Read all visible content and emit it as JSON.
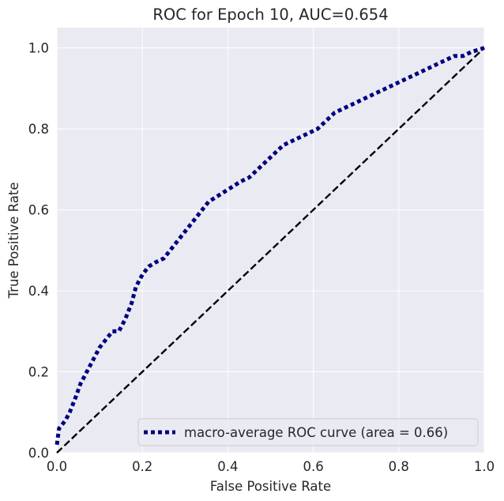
{
  "chart_data": {
    "type": "line",
    "title": "ROC for Epoch 10,  AUC=0.654",
    "xlabel": "False Positive Rate",
    "ylabel": "True Positive Rate",
    "xlim": [
      0.0,
      1.0
    ],
    "ylim": [
      0.0,
      1.05
    ],
    "xticks": [
      "0.0",
      "0.2",
      "0.4",
      "0.6",
      "0.8",
      "1.0"
    ],
    "yticks": [
      "0.0",
      "0.2",
      "0.4",
      "0.6",
      "0.8",
      "1.0"
    ],
    "grid": true,
    "legend_position": "lower-right",
    "background_color": "#eaeaf2",
    "series": [
      {
        "name": "macro-average ROC curve (area = 0.66)",
        "color": "#000080",
        "style": "dotted",
        "x": [
          0.0,
          0.005,
          0.02,
          0.03,
          0.045,
          0.055,
          0.07,
          0.085,
          0.1,
          0.115,
          0.13,
          0.145,
          0.16,
          0.175,
          0.185,
          0.2,
          0.215,
          0.23,
          0.25,
          0.265,
          0.28,
          0.295,
          0.31,
          0.325,
          0.34,
          0.355,
          0.37,
          0.385,
          0.4,
          0.415,
          0.43,
          0.45,
          0.47,
          0.49,
          0.51,
          0.53,
          0.55,
          0.57,
          0.59,
          0.61,
          0.63,
          0.65,
          0.67,
          0.69,
          0.71,
          0.73,
          0.75,
          0.77,
          0.79,
          0.81,
          0.83,
          0.85,
          0.87,
          0.89,
          0.91,
          0.93,
          0.95,
          0.97,
          1.0
        ],
        "y": [
          0.02,
          0.06,
          0.08,
          0.1,
          0.14,
          0.17,
          0.2,
          0.23,
          0.26,
          0.28,
          0.3,
          0.3,
          0.33,
          0.37,
          0.41,
          0.44,
          0.46,
          0.47,
          0.48,
          0.5,
          0.52,
          0.54,
          0.56,
          0.58,
          0.6,
          0.62,
          0.63,
          0.64,
          0.65,
          0.66,
          0.67,
          0.68,
          0.7,
          0.72,
          0.74,
          0.76,
          0.77,
          0.78,
          0.79,
          0.8,
          0.82,
          0.84,
          0.85,
          0.86,
          0.87,
          0.88,
          0.89,
          0.9,
          0.91,
          0.92,
          0.93,
          0.94,
          0.95,
          0.96,
          0.97,
          0.98,
          0.98,
          0.99,
          1.0
        ]
      },
      {
        "name": "",
        "color": "#000000",
        "style": "dashed",
        "x": [
          0.0,
          1.0
        ],
        "y": [
          0.0,
          1.0
        ]
      }
    ]
  }
}
